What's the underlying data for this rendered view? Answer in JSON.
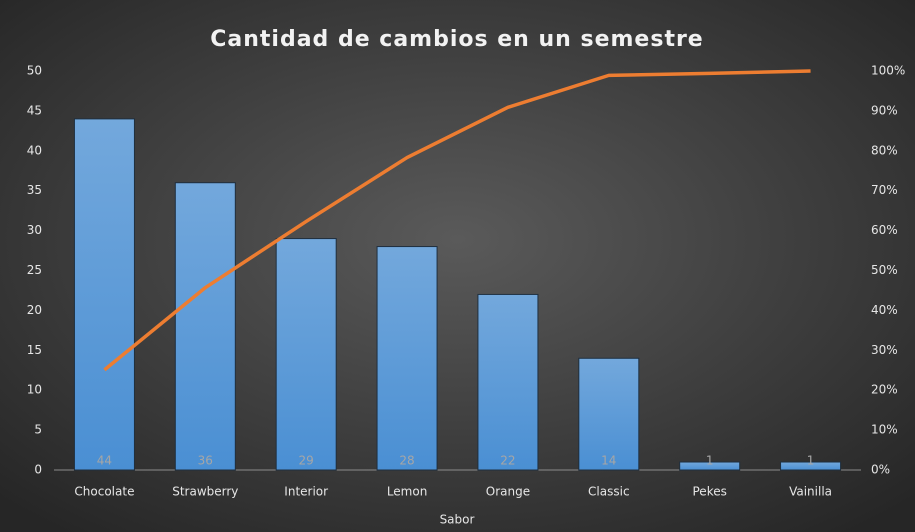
{
  "chart_data": {
    "type": "pareto",
    "title": "Cantidad de cambios en un semestre",
    "x_label": "Sabor",
    "categories": [
      "Chocolate",
      "Strawberry",
      "Interior",
      "Lemon",
      "Orange",
      "Classic",
      "Pekes",
      "Vainilla"
    ],
    "series": [
      {
        "type": "bar",
        "color": "#5b9bd5",
        "values": [
          44,
          36,
          29,
          28,
          22,
          14,
          1,
          1
        ]
      },
      {
        "type": "line",
        "axis": "y2",
        "color": "#ed7d31",
        "values": [
          25.1,
          45.7,
          62.3,
          78.3,
          90.9,
          98.9,
          99.4,
          100
        ]
      }
    ],
    "ylim": [
      0,
      50
    ],
    "yticks": [
      0,
      5,
      10,
      15,
      20,
      25,
      30,
      35,
      40,
      45,
      50
    ],
    "y2lim": [
      0,
      100
    ],
    "y2ticks": [
      {
        "value": 0,
        "label": "0%"
      },
      {
        "value": 10,
        "label": "10%"
      },
      {
        "value": 20,
        "label": "20%"
      },
      {
        "value": 30,
        "label": "30%"
      },
      {
        "value": 40,
        "label": "40%"
      },
      {
        "value": 50,
        "label": "50%"
      },
      {
        "value": 60,
        "label": "60%"
      },
      {
        "value": 70,
        "label": "70%"
      },
      {
        "value": 80,
        "label": "80%"
      },
      {
        "value": 90,
        "label": "90%"
      },
      {
        "value": 100,
        "label": "100%"
      }
    ]
  }
}
